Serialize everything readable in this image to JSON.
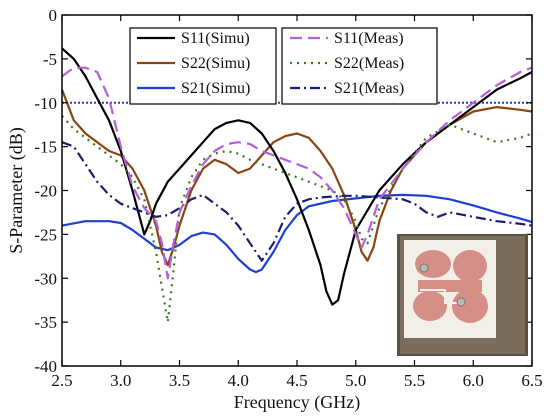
{
  "chart_data": {
    "type": "line",
    "title": "",
    "xlabel": "Frequency (GHz)",
    "ylabel": "S-Parameter (dB)",
    "xlim": [
      2.5,
      6.5
    ],
    "ylim": [
      -40,
      0
    ],
    "xticks": [
      2.5,
      3.0,
      3.5,
      4.0,
      4.5,
      5.0,
      5.5,
      6.0,
      6.5
    ],
    "xtick_labels": [
      "2.5",
      "3.0",
      "3.5",
      "4.0",
      "4.5",
      "5.0",
      "5.5",
      "6.0",
      "6.5"
    ],
    "yticks": [
      0,
      -5,
      -10,
      -15,
      -20,
      -25,
      -30,
      -35,
      -40
    ],
    "ytick_labels": [
      "0",
      "-5",
      "-10",
      "-15",
      "-20",
      "-25",
      "-30",
      "-35",
      "-40"
    ],
    "grid": false,
    "legend_position": "top-center",
    "reference_line": {
      "y": -10,
      "color": "#3333cc"
    },
    "inset_photo": true,
    "series": [
      {
        "name": "S11(Simu)",
        "color": "#000000",
        "style": "solid",
        "x": [
          2.5,
          2.6,
          2.7,
          2.8,
          2.9,
          3.0,
          3.1,
          3.2,
          3.25,
          3.3,
          3.4,
          3.5,
          3.6,
          3.7,
          3.8,
          3.9,
          4.0,
          4.1,
          4.2,
          4.3,
          4.4,
          4.5,
          4.6,
          4.7,
          4.75,
          4.8,
          4.85,
          4.9,
          5.0,
          5.2,
          5.4,
          5.6,
          5.8,
          6.0,
          6.2,
          6.4,
          6.5
        ],
        "y": [
          -3.8,
          -5.0,
          -7.0,
          -9.5,
          -12.0,
          -15.5,
          -20.0,
          -25.0,
          -23.5,
          -21.5,
          -19.0,
          -17.5,
          -16.0,
          -14.5,
          -13.0,
          -12.3,
          -12.0,
          -12.3,
          -13.5,
          -15.5,
          -18.0,
          -21.0,
          -24.5,
          -28.5,
          -31.5,
          -33.0,
          -32.5,
          -29.5,
          -24.5,
          -20.0,
          -17.0,
          -14.5,
          -12.5,
          -10.5,
          -8.5,
          -7.2,
          -6.5
        ]
      },
      {
        "name": "S22(Simu)",
        "color": "#8b4513",
        "style": "solid",
        "x": [
          2.5,
          2.6,
          2.7,
          2.8,
          2.9,
          3.0,
          3.1,
          3.2,
          3.3,
          3.35,
          3.4,
          3.45,
          3.5,
          3.6,
          3.7,
          3.8,
          3.9,
          4.0,
          4.1,
          4.2,
          4.3,
          4.4,
          4.5,
          4.6,
          4.7,
          4.8,
          4.9,
          5.0,
          5.05,
          5.1,
          5.15,
          5.2,
          5.3,
          5.4,
          5.6,
          5.8,
          6.0,
          6.2,
          6.4,
          6.5
        ],
        "y": [
          -8.5,
          -12.0,
          -13.5,
          -14.5,
          -15.5,
          -16.0,
          -17.5,
          -20.0,
          -24.0,
          -27.0,
          -28.5,
          -26.5,
          -24.0,
          -20.0,
          -17.5,
          -16.5,
          -17.0,
          -18.0,
          -17.5,
          -16.0,
          -14.5,
          -13.8,
          -13.5,
          -14.0,
          -15.5,
          -17.5,
          -20.5,
          -24.5,
          -27.0,
          -28.0,
          -26.5,
          -23.5,
          -20.0,
          -17.5,
          -14.5,
          -12.5,
          -11.0,
          -10.5,
          -10.8,
          -11.0
        ]
      },
      {
        "name": "S21(Simu)",
        "color": "#1f3fd0",
        "style": "solid",
        "x": [
          2.5,
          2.7,
          2.9,
          3.0,
          3.1,
          3.2,
          3.3,
          3.4,
          3.5,
          3.6,
          3.7,
          3.8,
          3.9,
          4.0,
          4.1,
          4.15,
          4.2,
          4.3,
          4.4,
          4.5,
          4.6,
          4.8,
          5.0,
          5.2,
          5.4,
          5.6,
          5.8,
          6.0,
          6.2,
          6.4,
          6.5
        ],
        "y": [
          -24.0,
          -23.5,
          -23.5,
          -23.7,
          -24.5,
          -25.5,
          -26.5,
          -26.8,
          -26.2,
          -25.2,
          -24.8,
          -25.0,
          -26.2,
          -27.8,
          -29.0,
          -29.3,
          -29.0,
          -27.0,
          -24.5,
          -22.8,
          -21.8,
          -21.2,
          -20.9,
          -20.6,
          -20.5,
          -20.6,
          -21.0,
          -21.7,
          -22.5,
          -23.2,
          -23.6
        ]
      },
      {
        "name": "S11(Meas)",
        "color": "#b45fe0",
        "style": "dash",
        "x": [
          2.5,
          2.6,
          2.7,
          2.8,
          2.9,
          3.0,
          3.1,
          3.2,
          3.3,
          3.35,
          3.4,
          3.45,
          3.5,
          3.6,
          3.7,
          3.8,
          3.9,
          4.0,
          4.1,
          4.2,
          4.3,
          4.4,
          4.5,
          4.6,
          4.7,
          4.8,
          4.9,
          5.0,
          5.05,
          5.1,
          5.2,
          5.4,
          5.6,
          5.8,
          6.0,
          6.2,
          6.4,
          6.5
        ],
        "y": [
          -7.0,
          -6.0,
          -6.0,
          -6.5,
          -9.5,
          -15.0,
          -19.5,
          -22.0,
          -23.5,
          -26.0,
          -30.0,
          -26.0,
          -22.5,
          -19.5,
          -17.0,
          -15.5,
          -14.7,
          -14.5,
          -14.7,
          -15.5,
          -16.0,
          -16.5,
          -17.0,
          -17.5,
          -18.5,
          -20.0,
          -22.0,
          -25.0,
          -26.5,
          -25.0,
          -21.0,
          -17.5,
          -14.5,
          -12.0,
          -10.0,
          -8.0,
          -6.5,
          -6.0
        ]
      },
      {
        "name": "S22(Meas)",
        "color": "#3a7a1a",
        "style": "dot",
        "x": [
          2.5,
          2.6,
          2.7,
          2.8,
          2.9,
          3.0,
          3.1,
          3.2,
          3.3,
          3.35,
          3.4,
          3.45,
          3.5,
          3.6,
          3.7,
          3.8,
          3.9,
          4.0,
          4.1,
          4.2,
          4.3,
          4.4,
          4.5,
          4.6,
          4.7,
          4.8,
          4.9,
          5.0,
          5.05,
          5.1,
          5.2,
          5.4,
          5.6,
          5.8,
          6.0,
          6.2,
          6.4,
          6.5
        ],
        "y": [
          -11.5,
          -13.0,
          -14.0,
          -15.0,
          -16.0,
          -17.0,
          -18.5,
          -21.0,
          -27.0,
          -31.0,
          -35.0,
          -29.0,
          -22.0,
          -18.5,
          -16.5,
          -15.8,
          -15.5,
          -15.8,
          -16.5,
          -17.0,
          -17.5,
          -18.0,
          -18.5,
          -19.0,
          -19.5,
          -20.0,
          -21.0,
          -23.5,
          -25.5,
          -26.0,
          -22.0,
          -17.5,
          -14.0,
          -12.5,
          -13.5,
          -14.5,
          -14.0,
          -13.5
        ]
      },
      {
        "name": "S21(Meas)",
        "color": "#1a1f6e",
        "style": "dashdot",
        "x": [
          2.5,
          2.6,
          2.7,
          2.8,
          2.9,
          3.0,
          3.1,
          3.2,
          3.3,
          3.4,
          3.5,
          3.6,
          3.7,
          3.8,
          3.9,
          4.0,
          4.1,
          4.2,
          4.3,
          4.4,
          4.5,
          4.6,
          4.7,
          4.8,
          4.9,
          5.0,
          5.2,
          5.4,
          5.5,
          5.6,
          5.7,
          5.8,
          6.0,
          6.2,
          6.4,
          6.5
        ],
        "y": [
          -14.5,
          -15.0,
          -17.0,
          -19.0,
          -20.5,
          -21.5,
          -22.0,
          -22.5,
          -23.0,
          -22.8,
          -22.0,
          -21.0,
          -20.5,
          -21.5,
          -22.5,
          -24.0,
          -26.0,
          -28.0,
          -26.0,
          -23.0,
          -21.5,
          -21.0,
          -20.8,
          -20.7,
          -20.6,
          -20.6,
          -20.8,
          -21.0,
          -21.5,
          -22.5,
          -23.0,
          -22.5,
          -23.0,
          -23.5,
          -23.8,
          -24.0
        ]
      }
    ]
  }
}
